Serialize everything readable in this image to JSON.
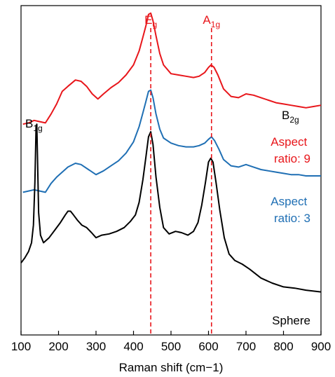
{
  "chart_data": {
    "type": "line",
    "xlabel": "Raman shift (cm−1)",
    "xlim": [
      100,
      900
    ],
    "x_ticks": [
      "100",
      "200",
      "300",
      "400",
      "500",
      "600",
      "700",
      "800",
      "900"
    ],
    "y_ticks_visible": false,
    "grid": false,
    "series": [
      {
        "name": "Aspect ratio: 9",
        "label_lines": [
          "Aspect",
          "ratio: 9"
        ],
        "color": "#e8161b",
        "points": [
          [
            105,
            0.73
          ],
          [
            120,
            0.735
          ],
          [
            135,
            0.745
          ],
          [
            150,
            0.74
          ],
          [
            165,
            0.735
          ],
          [
            180,
            0.77
          ],
          [
            195,
            0.81
          ],
          [
            210,
            0.86
          ],
          [
            225,
            0.88
          ],
          [
            245,
            0.905
          ],
          [
            260,
            0.9
          ],
          [
            275,
            0.88
          ],
          [
            290,
            0.85
          ],
          [
            305,
            0.83
          ],
          [
            320,
            0.85
          ],
          [
            340,
            0.875
          ],
          [
            360,
            0.895
          ],
          [
            380,
            0.925
          ],
          [
            400,
            0.965
          ],
          [
            415,
            1.02
          ],
          [
            425,
            1.075
          ],
          [
            433,
            1.12
          ],
          [
            440,
            1.165
          ],
          [
            446,
            1.17
          ],
          [
            452,
            1.14
          ],
          [
            460,
            1.08
          ],
          [
            470,
            1.01
          ],
          [
            480,
            0.965
          ],
          [
            500,
            0.93
          ],
          [
            520,
            0.925
          ],
          [
            540,
            0.92
          ],
          [
            560,
            0.915
          ],
          [
            575,
            0.92
          ],
          [
            590,
            0.935
          ],
          [
            600,
            0.955
          ],
          [
            607,
            0.965
          ],
          [
            615,
            0.955
          ],
          [
            625,
            0.925
          ],
          [
            640,
            0.87
          ],
          [
            660,
            0.84
          ],
          [
            680,
            0.835
          ],
          [
            700,
            0.85
          ],
          [
            720,
            0.845
          ],
          [
            740,
            0.835
          ],
          [
            760,
            0.825
          ],
          [
            780,
            0.815
          ],
          [
            800,
            0.81
          ],
          [
            820,
            0.805
          ],
          [
            840,
            0.8
          ],
          [
            860,
            0.795
          ],
          [
            880,
            0.8
          ],
          [
            900,
            0.805
          ]
        ]
      },
      {
        "name": "Aspect ratio: 3",
        "label_lines": [
          "Aspect",
          "ratio: 3"
        ],
        "color": "#1f6fb4",
        "points": [
          [
            105,
            0.46
          ],
          [
            120,
            0.465
          ],
          [
            135,
            0.47
          ],
          [
            150,
            0.465
          ],
          [
            165,
            0.46
          ],
          [
            180,
            0.495
          ],
          [
            195,
            0.52
          ],
          [
            210,
            0.54
          ],
          [
            225,
            0.56
          ],
          [
            245,
            0.575
          ],
          [
            260,
            0.57
          ],
          [
            280,
            0.55
          ],
          [
            300,
            0.53
          ],
          [
            320,
            0.545
          ],
          [
            340,
            0.565
          ],
          [
            360,
            0.585
          ],
          [
            380,
            0.615
          ],
          [
            400,
            0.66
          ],
          [
            415,
            0.72
          ],
          [
            425,
            0.775
          ],
          [
            433,
            0.82
          ],
          [
            440,
            0.86
          ],
          [
            446,
            0.865
          ],
          [
            452,
            0.835
          ],
          [
            460,
            0.77
          ],
          [
            470,
            0.71
          ],
          [
            480,
            0.675
          ],
          [
            500,
            0.655
          ],
          [
            520,
            0.645
          ],
          [
            540,
            0.64
          ],
          [
            560,
            0.64
          ],
          [
            575,
            0.645
          ],
          [
            590,
            0.655
          ],
          [
            600,
            0.67
          ],
          [
            608,
            0.68
          ],
          [
            616,
            0.665
          ],
          [
            628,
            0.63
          ],
          [
            640,
            0.59
          ],
          [
            660,
            0.565
          ],
          [
            680,
            0.56
          ],
          [
            700,
            0.57
          ],
          [
            720,
            0.56
          ],
          [
            740,
            0.55
          ],
          [
            760,
            0.545
          ],
          [
            780,
            0.54
          ],
          [
            800,
            0.535
          ],
          [
            820,
            0.53
          ],
          [
            840,
            0.53
          ],
          [
            860,
            0.525
          ],
          [
            880,
            0.525
          ],
          [
            900,
            0.525
          ]
        ]
      },
      {
        "name": "Sphere",
        "label_lines": [
          "Sphere"
        ],
        "color": "#000000",
        "points": [
          [
            100,
            0.18
          ],
          [
            110,
            0.2
          ],
          [
            120,
            0.225
          ],
          [
            128,
            0.26
          ],
          [
            133,
            0.33
          ],
          [
            137,
            0.5
          ],
          [
            140,
            0.71
          ],
          [
            142,
            0.73
          ],
          [
            144,
            0.6
          ],
          [
            147,
            0.38
          ],
          [
            152,
            0.29
          ],
          [
            160,
            0.26
          ],
          [
            175,
            0.28
          ],
          [
            190,
            0.31
          ],
          [
            205,
            0.34
          ],
          [
            218,
            0.37
          ],
          [
            225,
            0.385
          ],
          [
            232,
            0.385
          ],
          [
            240,
            0.37
          ],
          [
            250,
            0.35
          ],
          [
            262,
            0.33
          ],
          [
            275,
            0.32
          ],
          [
            288,
            0.3
          ],
          [
            300,
            0.28
          ],
          [
            315,
            0.29
          ],
          [
            335,
            0.295
          ],
          [
            355,
            0.305
          ],
          [
            375,
            0.32
          ],
          [
            392,
            0.345
          ],
          [
            405,
            0.37
          ],
          [
            415,
            0.42
          ],
          [
            425,
            0.51
          ],
          [
            433,
            0.6
          ],
          [
            440,
            0.68
          ],
          [
            446,
            0.7
          ],
          [
            452,
            0.65
          ],
          [
            460,
            0.52
          ],
          [
            470,
            0.4
          ],
          [
            480,
            0.32
          ],
          [
            495,
            0.295
          ],
          [
            512,
            0.305
          ],
          [
            528,
            0.3
          ],
          [
            545,
            0.29
          ],
          [
            560,
            0.305
          ],
          [
            572,
            0.34
          ],
          [
            582,
            0.41
          ],
          [
            592,
            0.5
          ],
          [
            600,
            0.58
          ],
          [
            606,
            0.595
          ],
          [
            612,
            0.58
          ],
          [
            620,
            0.5
          ],
          [
            630,
            0.39
          ],
          [
            642,
            0.28
          ],
          [
            655,
            0.215
          ],
          [
            670,
            0.19
          ],
          [
            690,
            0.175
          ],
          [
            710,
            0.155
          ],
          [
            740,
            0.12
          ],
          [
            770,
            0.1
          ],
          [
            800,
            0.085
          ],
          [
            830,
            0.08
          ],
          [
            860,
            0.072
          ],
          [
            900,
            0.065
          ]
        ]
      }
    ],
    "annotations": {
      "peak_lines": [
        {
          "x": 446,
          "label": "E",
          "sub": "g",
          "color": "#e8161b"
        },
        {
          "x": 608,
          "label": "A",
          "sub": "1g",
          "color": "#e8161b"
        }
      ],
      "mode_labels": [
        {
          "label": "B",
          "sub": "1g",
          "color": "#000000"
        },
        {
          "label": "B",
          "sub": "2g",
          "color": "#000000"
        }
      ]
    }
  }
}
